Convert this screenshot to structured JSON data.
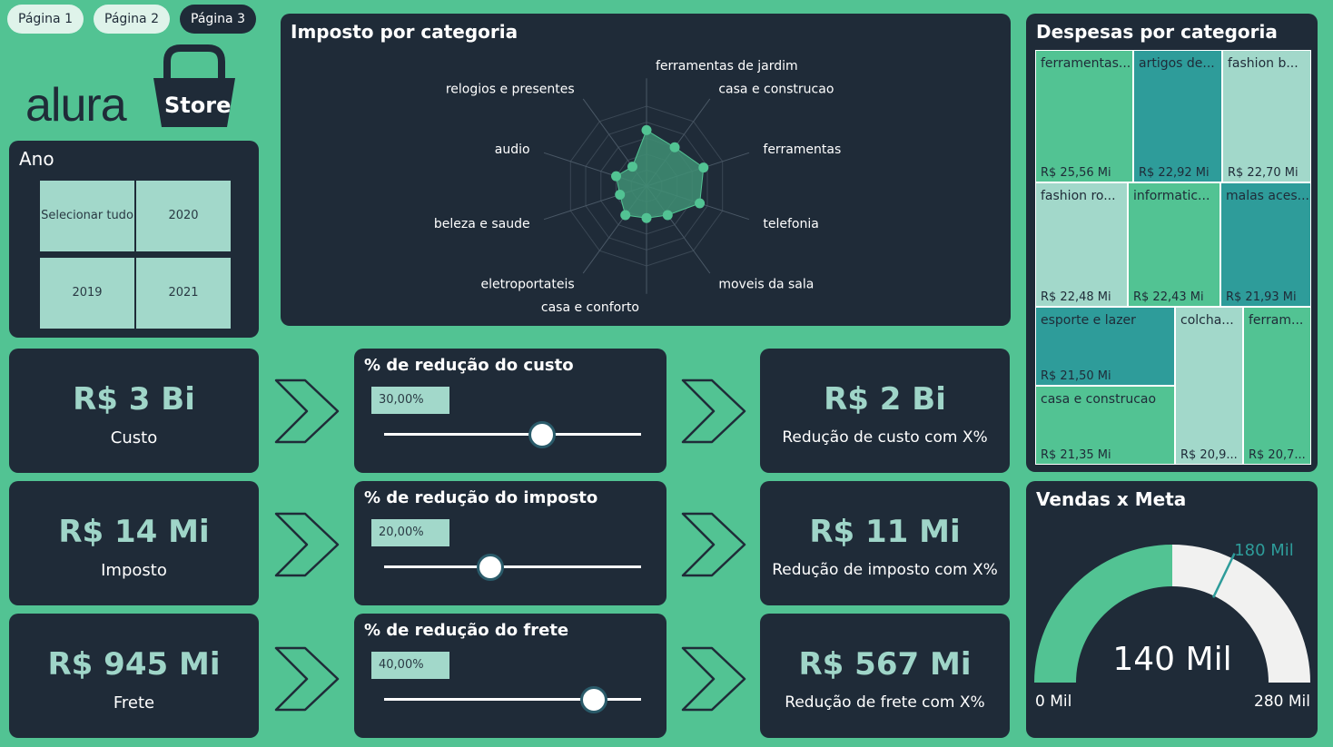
{
  "nav": {
    "tabs": [
      "Página 1",
      "Página 2",
      "Página 3"
    ]
  },
  "logo": {
    "word": "alura",
    "store": "Store"
  },
  "year_slicer": {
    "title": "Ano",
    "options": [
      "Selecionar tudo",
      "2020",
      "2019",
      "2021"
    ]
  },
  "kpis": [
    {
      "value": "R$ 3 Bi",
      "label": "Custo"
    },
    {
      "value": "R$ 14 Mi",
      "label": "Imposto"
    },
    {
      "value": "R$ 945 Mi",
      "label": "Frete"
    }
  ],
  "sliders": [
    {
      "title": "% de redução do custo",
      "value_text": "30,00%",
      "value": 30
    },
    {
      "title": "% de redução do imposto",
      "value_text": "20,00%",
      "value": 20
    },
    {
      "title": "% de redução do frete",
      "value_text": "40,00%",
      "value": 40
    }
  ],
  "results": [
    {
      "value": "R$ 2 Bi",
      "label": "Redução de custo com X%"
    },
    {
      "value": "R$ 11 Mi",
      "label": "Redução de imposto com X%"
    },
    {
      "value": "R$ 567 Mi",
      "label": "Redução de frete com X%"
    }
  ],
  "radar": {
    "title": "Imposto por categoria",
    "chart_data": {
      "type": "radar",
      "categories": [
        "ferramentas de jardim",
        "casa e construcao",
        "ferramentas",
        "telefonia",
        "moveis da sala",
        "casa e conforto",
        "eletroportateis",
        "beleza e saude",
        "audio",
        "relogios e presentes"
      ],
      "values": [
        0.7,
        0.6,
        0.75,
        0.7,
        0.45,
        0.4,
        0.45,
        0.35,
        0.4,
        0.3
      ],
      "colors": {
        "fill": "#3f8f74",
        "point": "#52c393",
        "grid": "#3a4754"
      }
    }
  },
  "treemap": {
    "title": "Despesas por categoria",
    "items": [
      {
        "label": "ferramentas...",
        "value": "R$ 25,56 Mi",
        "color": "#52c393"
      },
      {
        "label": "artigos de...",
        "value": "R$ 22,92 Mi",
        "color": "#2e9c9a"
      },
      {
        "label": "fashion b...",
        "value": "R$ 22,70 Mi",
        "color": "#a2d8ca"
      },
      {
        "label": "fashion ro...",
        "value": "R$ 22,48 Mi",
        "color": "#a2d8ca"
      },
      {
        "label": "informatic...",
        "value": "R$ 22,43 Mi",
        "color": "#52c393"
      },
      {
        "label": "malas aces...",
        "value": "R$ 21,93 Mi",
        "color": "#2e9c9a"
      },
      {
        "label": "esporte e lazer",
        "value": "R$ 21,50 Mi",
        "color": "#2e9c9a"
      },
      {
        "label": "colcha...",
        "value": "R$ 20,9...",
        "color": "#a2d8ca"
      },
      {
        "label": "ferram...",
        "value": "R$ 20,7...",
        "color": "#52c393"
      },
      {
        "label": "casa e construcao",
        "value": "R$ 21,35 Mi",
        "color": "#52c393"
      }
    ]
  },
  "gauge": {
    "title": "Vendas x Meta",
    "chart_data": {
      "type": "gauge",
      "min": 0,
      "max": 280,
      "value": 140,
      "target": 180,
      "value_text": "140 Mil",
      "min_text": "0 Mil",
      "max_text": "280 Mil",
      "target_text": "180 Mil",
      "colors": {
        "value": "#52c393",
        "rest": "#f1f1f0",
        "target": "#2e9c9a"
      }
    }
  }
}
